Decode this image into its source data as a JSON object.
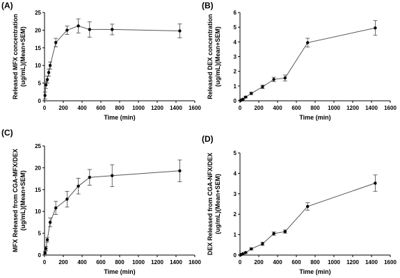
{
  "chart_data": [
    {
      "panel_label": "(A)",
      "type": "line",
      "xlabel": "Time (min)",
      "ylabel_lines": [
        "Released MFX concentration",
        "(ug/mL)(Mean+SEM)"
      ],
      "xlim": [
        0,
        1600
      ],
      "ylim": [
        0,
        25
      ],
      "xticks": [
        0,
        200,
        400,
        600,
        800,
        1000,
        1200,
        1400,
        1600
      ],
      "yticks": [
        0,
        5,
        10,
        15,
        20,
        25
      ],
      "x": [
        5,
        15,
        30,
        45,
        60,
        120,
        240,
        360,
        480,
        720,
        1440
      ],
      "y": [
        1.5,
        4.5,
        6.0,
        8.0,
        10.0,
        16.5,
        20.0,
        21.2,
        20.2,
        20.2,
        19.8
      ],
      "err": [
        1.0,
        1.0,
        1.0,
        1.0,
        1.0,
        1.2,
        1.2,
        2.0,
        2.2,
        1.5,
        2.0
      ]
    },
    {
      "panel_label": "(B)",
      "type": "line",
      "xlabel": "Time (min)",
      "ylabel_lines": [
        "Released DEX concentration",
        "(ug/mL)(Mean+SEM)"
      ],
      "xlim": [
        0,
        1600
      ],
      "ylim": [
        0,
        6
      ],
      "xticks": [
        0,
        200,
        400,
        600,
        800,
        1000,
        1200,
        1400,
        1600
      ],
      "yticks": [
        0,
        1,
        2,
        3,
        4,
        5,
        6
      ],
      "x": [
        5,
        15,
        30,
        60,
        120,
        240,
        360,
        480,
        720,
        1440
      ],
      "y": [
        0.02,
        0.05,
        0.1,
        0.25,
        0.5,
        0.95,
        1.45,
        1.55,
        3.95,
        4.95
      ],
      "err": [
        0.02,
        0.03,
        0.04,
        0.05,
        0.08,
        0.12,
        0.15,
        0.2,
        0.3,
        0.5
      ]
    },
    {
      "panel_label": "(C)",
      "type": "line",
      "xlabel": "Time (min)",
      "ylabel_lines": [
        "MFX Released from CGA-MFX/DEX",
        "(ug/mL)(Mean+SEM)"
      ],
      "xlim": [
        0,
        1600
      ],
      "ylim": [
        0,
        25
      ],
      "xticks": [
        0,
        200,
        400,
        600,
        800,
        1000,
        1200,
        1400,
        1600
      ],
      "yticks": [
        0,
        5,
        10,
        15,
        20,
        25
      ],
      "x": [
        5,
        15,
        30,
        60,
        120,
        240,
        360,
        480,
        720,
        1440
      ],
      "y": [
        0.5,
        1.5,
        3.5,
        7.5,
        10.8,
        12.8,
        15.8,
        17.8,
        18.2,
        19.3
      ],
      "err": [
        0.3,
        0.5,
        0.5,
        1.0,
        1.5,
        1.8,
        1.8,
        1.8,
        2.5,
        2.5
      ]
    },
    {
      "panel_label": "(D)",
      "type": "line",
      "xlabel": "Time (min)",
      "ylabel_lines": [
        "DEX Released from CGA-NFX/DEX",
        "(ug/mL)(Mean+SEM)"
      ],
      "xlim": [
        0,
        1600
      ],
      "ylim": [
        0,
        5
      ],
      "xticks": [
        0,
        200,
        400,
        600,
        800,
        1000,
        1200,
        1400,
        1600
      ],
      "yticks": [
        0,
        1,
        2,
        3,
        4,
        5
      ],
      "x": [
        5,
        15,
        30,
        60,
        120,
        240,
        360,
        480,
        720,
        1440
      ],
      "y": [
        0.01,
        0.03,
        0.06,
        0.12,
        0.3,
        0.55,
        1.05,
        1.15,
        2.38,
        3.52
      ],
      "err": [
        0.01,
        0.01,
        0.02,
        0.03,
        0.05,
        0.08,
        0.08,
        0.08,
        0.18,
        0.4
      ]
    }
  ]
}
